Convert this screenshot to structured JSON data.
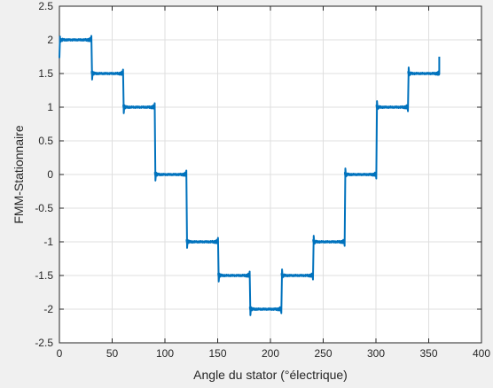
{
  "chart_data": {
    "type": "line",
    "xlabel": "Angle du stator (°électrique)",
    "ylabel": "FMM-Stationnaire",
    "xlim": [
      0,
      400
    ],
    "ylim": [
      -2.5,
      2.5
    ],
    "xticks": [
      0,
      50,
      100,
      150,
      200,
      250,
      300,
      350,
      400
    ],
    "yticks": [
      -2.5,
      -2,
      -1.5,
      -1,
      -0.5,
      0,
      0.5,
      1,
      1.5,
      2,
      2.5
    ],
    "xtick_labels": [
      "0",
      "50",
      "100",
      "150",
      "200",
      "250",
      "300",
      "350",
      "400"
    ],
    "ytick_labels": [
      "-2.5",
      "-2",
      "-1.5",
      "-1",
      "-0.5",
      "0",
      "0.5",
      "1",
      "1.5",
      "2",
      "2.5"
    ],
    "grid": true,
    "series": [
      {
        "color": "#0072bd",
        "x": [
          0,
          30,
          60,
          90,
          120,
          150,
          180,
          210,
          240,
          270,
          300,
          330,
          360
        ],
        "y": [
          2,
          1.5,
          1,
          0,
          -1,
          -1.5,
          -2,
          -1.5,
          -1,
          0,
          1,
          1.5,
          1.75
        ],
        "step_levels": [
          {
            "from": 0,
            "to": 30,
            "value": 2
          },
          {
            "from": 30,
            "to": 60,
            "value": 1.5
          },
          {
            "from": 60,
            "to": 90,
            "value": 1
          },
          {
            "from": 90,
            "to": 120,
            "value": 0
          },
          {
            "from": 120,
            "to": 150,
            "value": -1
          },
          {
            "from": 150,
            "to": 180,
            "value": -1.5
          },
          {
            "from": 180,
            "to": 210,
            "value": -2
          },
          {
            "from": 210,
            "to": 240,
            "value": -1.5
          },
          {
            "from": 240,
            "to": 270,
            "value": -1
          },
          {
            "from": 270,
            "to": 300,
            "value": 0
          },
          {
            "from": 300,
            "to": 330,
            "value": 1
          },
          {
            "from": 330,
            "to": 360,
            "value": 1.5
          }
        ]
      }
    ]
  }
}
